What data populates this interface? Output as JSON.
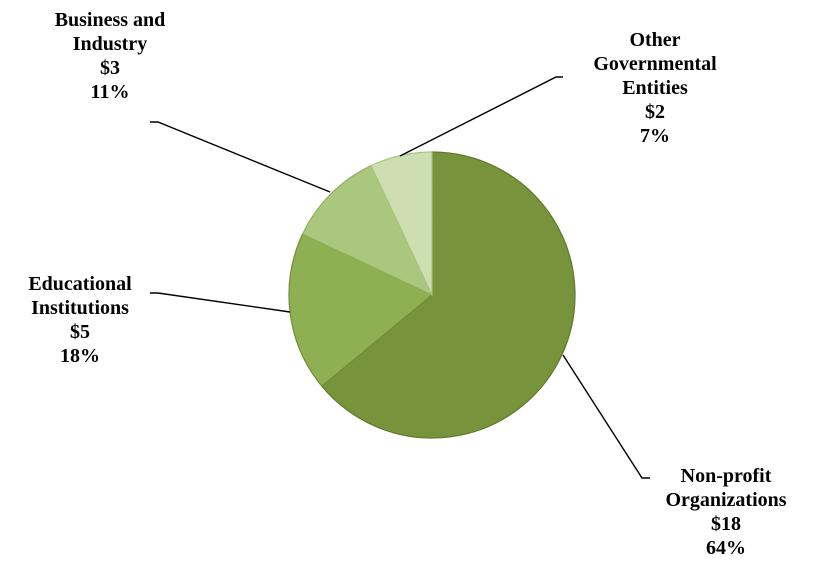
{
  "chart_data": {
    "type": "pie",
    "title": "",
    "start_angle": 0,
    "direction": "clockwise",
    "legend": "none",
    "slices": [
      {
        "key": "nonprofit",
        "label": "Non-profit Organizations",
        "label_lines": [
          "Non-profit",
          "Organizations"
        ],
        "amount": "$18",
        "percent": "64%",
        "value": 64,
        "color": "#77933c",
        "edge_color": "#5f7a2b"
      },
      {
        "key": "educational",
        "label": "Educational Institutions",
        "label_lines": [
          "Educational",
          "Institutions"
        ],
        "amount": "$5",
        "percent": "18%",
        "value": 18,
        "color": "#8fb052",
        "edge_color": "#6f8f38"
      },
      {
        "key": "business",
        "label": "Business and Industry",
        "label_lines": [
          "Business and",
          "Industry"
        ],
        "amount": "$3",
        "percent": "11%",
        "value": 11,
        "color": "#abc77d",
        "edge_color": "#8eae5c"
      },
      {
        "key": "othergov",
        "label": "Other Governmental Entities",
        "label_lines": [
          "Other",
          "Governmental",
          "Entities"
        ],
        "amount": "$2",
        "percent": "7%",
        "value": 7,
        "color": "#cddfb1",
        "edge_color": "#a9c583"
      }
    ]
  }
}
